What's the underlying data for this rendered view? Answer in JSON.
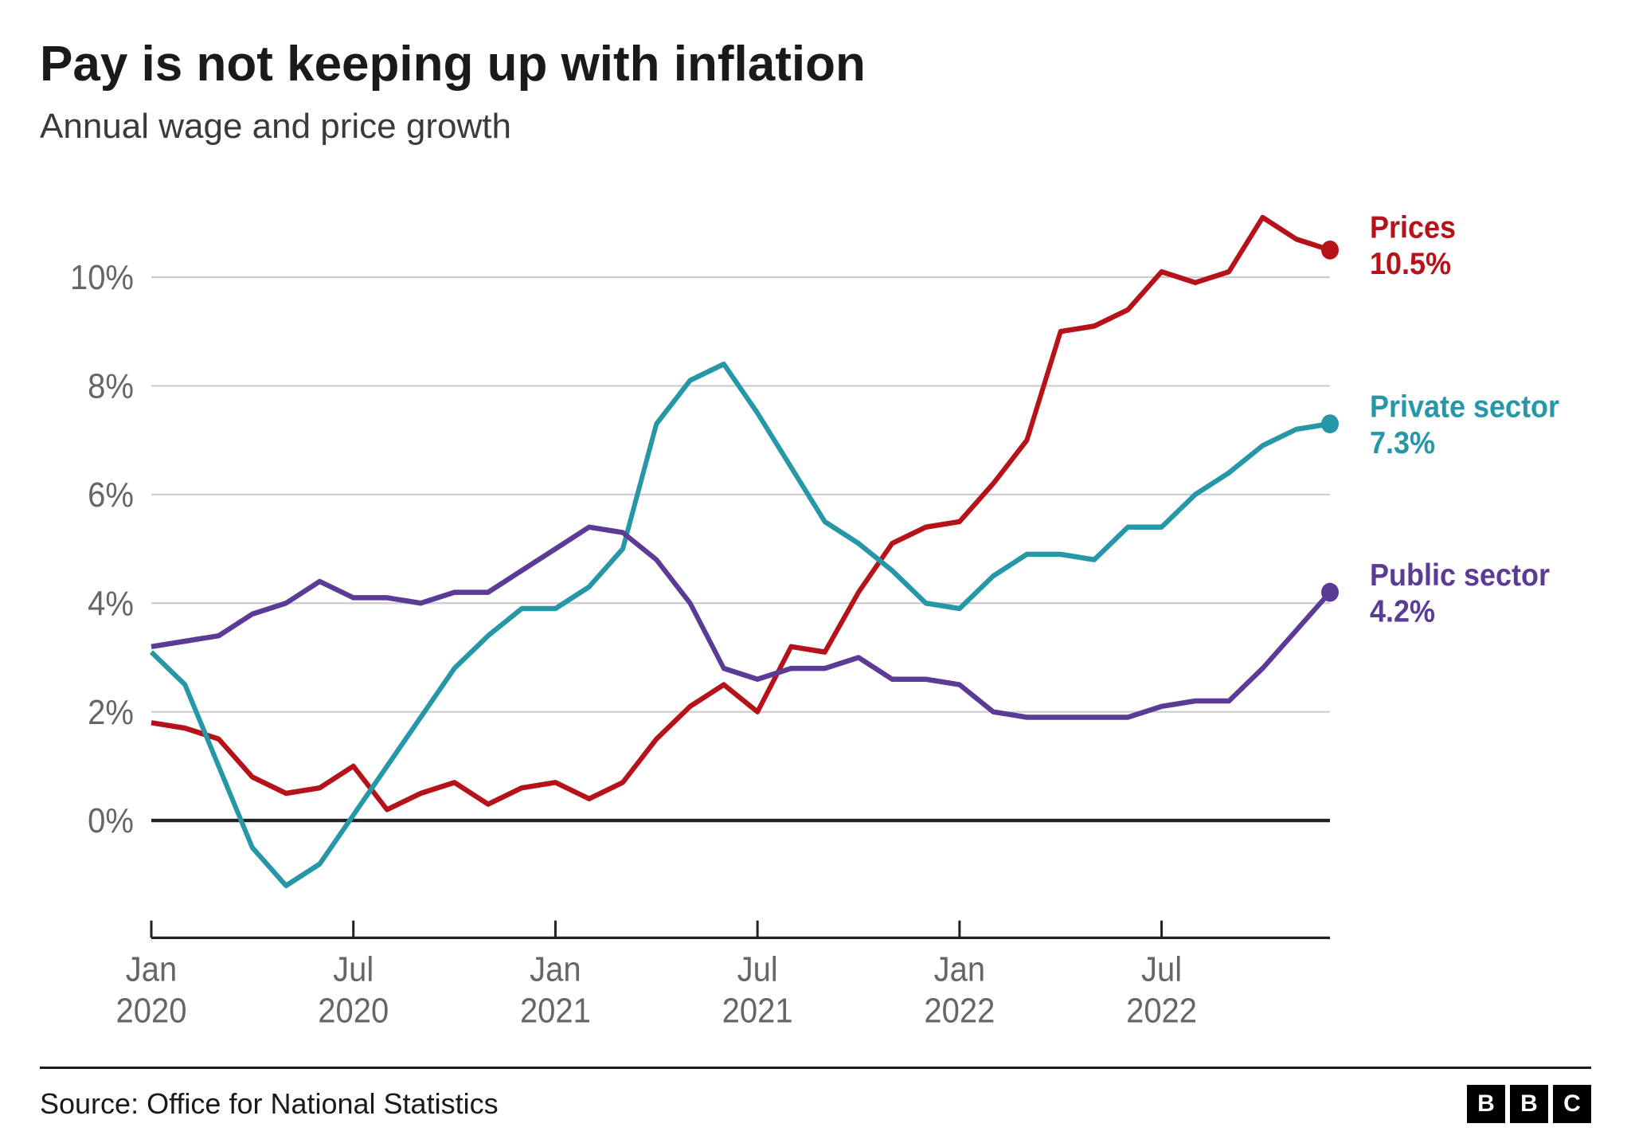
{
  "title": "Pay is not keeping up with inflation",
  "subtitle": "Annual wage and price growth",
  "source": "Source: Office for National Statistics",
  "logo": [
    "B",
    "B",
    "C"
  ],
  "chart": {
    "type": "line",
    "background_color": "#ffffff",
    "grid_color": "#cccccc",
    "zero_line_color": "#222222",
    "axis_color": "#222222",
    "label_color": "#666666",
    "title_fontsize": 62,
    "subtitle_fontsize": 44,
    "axis_label_fontsize": 40,
    "end_label_fontsize": 36,
    "line_width": 6,
    "end_marker_radius": 11,
    "ylim": [
      -2,
      11.5
    ],
    "y_ticks": [
      0,
      2,
      4,
      6,
      8,
      10
    ],
    "y_tick_labels": [
      "0%",
      "2%",
      "4%",
      "6%",
      "8%",
      "10%"
    ],
    "x_index_range": [
      0,
      35
    ],
    "x_ticks": [
      {
        "index": 0,
        "line1": "Jan",
        "line2": "2020"
      },
      {
        "index": 6,
        "line1": "Jul",
        "line2": "2020"
      },
      {
        "index": 12,
        "line1": "Jan",
        "line2": "2021"
      },
      {
        "index": 18,
        "line1": "Jul",
        "line2": "2021"
      },
      {
        "index": 24,
        "line1": "Jan",
        "line2": "2022"
      },
      {
        "index": 30,
        "line1": "Jul",
        "line2": "2022"
      }
    ],
    "series": [
      {
        "name": "Prices",
        "label": "Prices",
        "value_label": "10.5%",
        "color": "#b61219",
        "end_value": 10.5,
        "label_y": 10.6,
        "data": [
          1.8,
          1.7,
          1.5,
          0.8,
          0.5,
          0.6,
          1.0,
          0.2,
          0.5,
          0.7,
          0.3,
          0.6,
          0.7,
          0.4,
          0.7,
          1.5,
          2.1,
          2.5,
          2.0,
          3.2,
          3.1,
          4.2,
          5.1,
          5.4,
          5.5,
          6.2,
          7.0,
          9.0,
          9.1,
          9.4,
          10.1,
          9.9,
          10.1,
          11.1,
          10.7,
          10.5
        ]
      },
      {
        "name": "Private sector",
        "label": "Private sector",
        "value_label": "7.3%",
        "color": "#2597a7",
        "end_value": 7.3,
        "label_y": 7.3,
        "data": [
          3.1,
          2.5,
          1.0,
          -0.5,
          -1.2,
          -0.8,
          0.1,
          1.0,
          1.9,
          2.8,
          3.4,
          3.9,
          3.9,
          4.3,
          5.0,
          7.3,
          8.1,
          8.4,
          7.5,
          6.5,
          5.5,
          5.1,
          4.6,
          4.0,
          3.9,
          4.5,
          4.9,
          4.9,
          4.8,
          5.4,
          5.4,
          6.0,
          6.4,
          6.9,
          7.2,
          7.3
        ]
      },
      {
        "name": "Public sector",
        "label": "Public sector",
        "value_label": "4.2%",
        "color": "#5b3b96",
        "end_value": 4.2,
        "label_y": 4.2,
        "data": [
          3.2,
          3.3,
          3.4,
          3.8,
          4.0,
          4.4,
          4.1,
          4.1,
          4.0,
          4.2,
          4.2,
          4.6,
          5.0,
          5.4,
          5.3,
          4.8,
          4.0,
          2.8,
          2.6,
          2.8,
          2.8,
          3.0,
          2.6,
          2.6,
          2.5,
          2.0,
          1.9,
          1.9,
          1.9,
          1.9,
          2.1,
          2.2,
          2.2,
          2.8,
          3.5,
          4.2
        ]
      }
    ]
  }
}
